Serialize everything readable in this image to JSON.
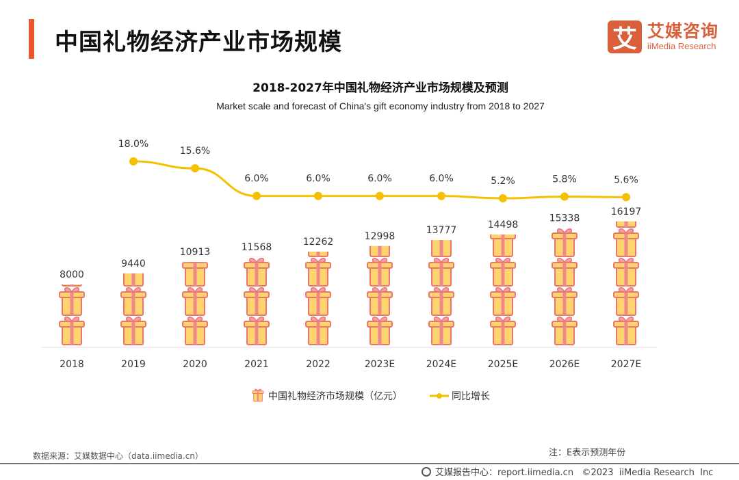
{
  "header": {
    "title": "中国礼物经济产业市场规模"
  },
  "logo": {
    "mark": "艾",
    "cn": "艾媒咨询",
    "en": "iiMedia Research"
  },
  "colors": {
    "accent": "#e8582f",
    "line": "#f5c000",
    "gift_body": "#ffd36e",
    "gift_ribbon": "#f08a8a",
    "gift_outline": "#e8756e"
  },
  "chart_data": {
    "type": "bar",
    "title": "2018-2027年中国礼物经济产业市场规模及预测",
    "subtitle": "Market scale and forecast of China's gift economy industry from 2018 to 2027",
    "categories": [
      "2018",
      "2019",
      "2020",
      "2021",
      "2022",
      "2023E",
      "2024E",
      "2025E",
      "2026E",
      "2027E"
    ],
    "bar_style": "pictorial-gift-icons",
    "series": [
      {
        "name": "中国礼物经济市场规模（亿元）",
        "type": "bar",
        "axis": "left",
        "values": [
          8000,
          9440,
          10913,
          11568,
          12262,
          12998,
          13777,
          14498,
          15338,
          16197
        ]
      },
      {
        "name": "同比增长",
        "type": "line",
        "axis": "right",
        "values": [
          null,
          18.0,
          15.6,
          6.0,
          6.0,
          6.0,
          6.0,
          5.2,
          5.8,
          5.6
        ],
        "labels": [
          "",
          "18.0%",
          "15.6%",
          "6.0%",
          "6.0%",
          "6.0%",
          "6.0%",
          "5.2%",
          "5.8%",
          "5.6%"
        ]
      }
    ],
    "legend_placement": "bottom",
    "grid": false
  },
  "footer": {
    "source": "数据来源：艾媒数据中心（data.iimedia.cn）",
    "note": "注：E表示预测年份",
    "report": "艾媒报告中心：report.iimedia.cn   ©2023  iiMedia Research  Inc"
  }
}
